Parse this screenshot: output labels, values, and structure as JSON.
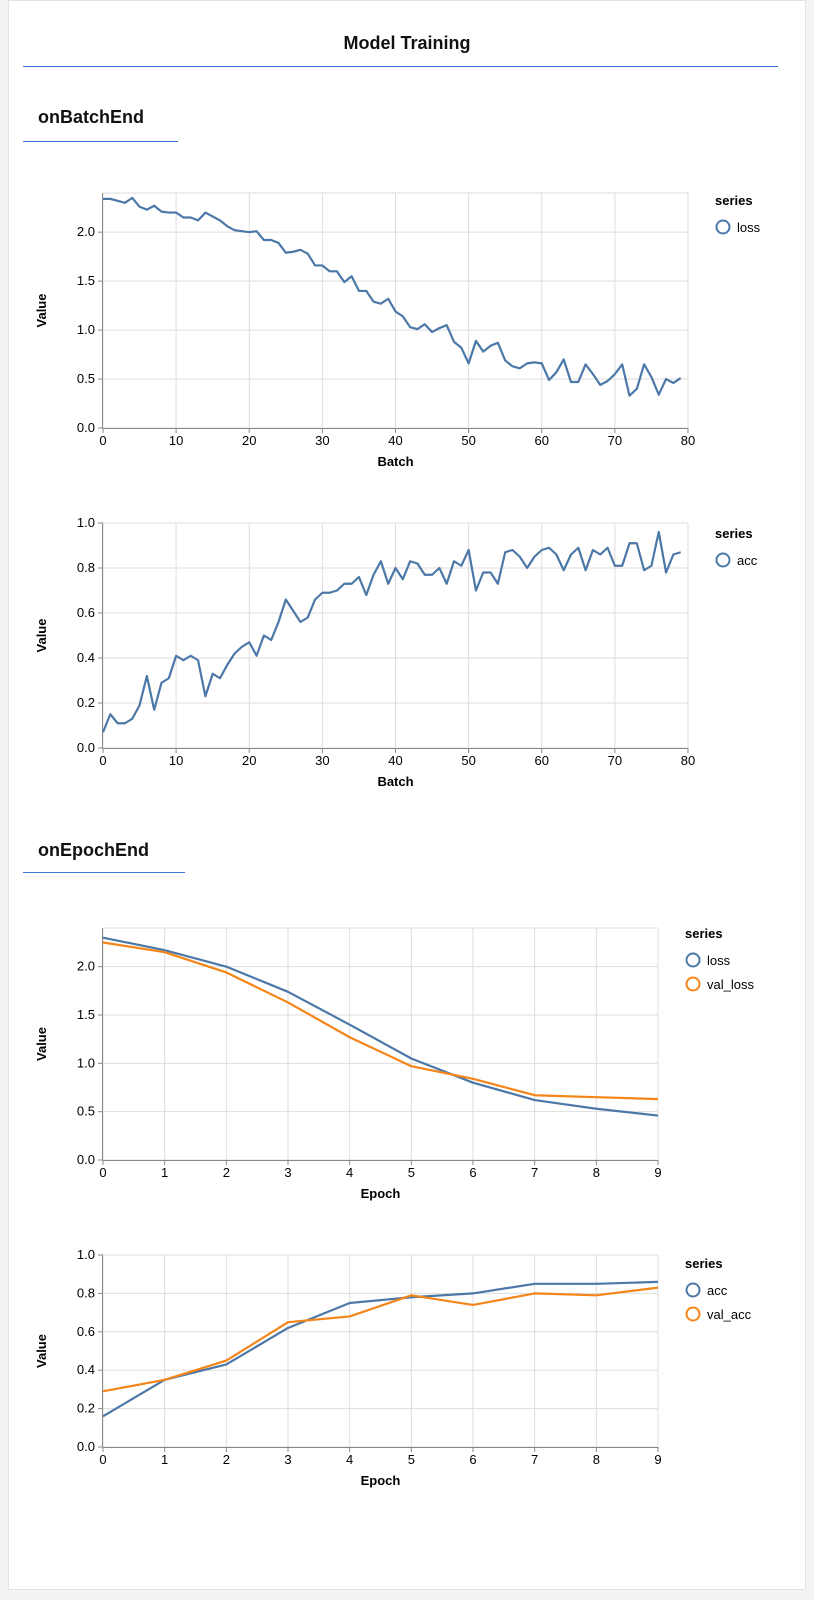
{
  "title": "Model Training",
  "sections": [
    {
      "heading": "onBatchEnd"
    },
    {
      "heading": "onEpochEnd"
    }
  ],
  "colors": {
    "series1": "#4c78a8",
    "series2": "#f58518"
  },
  "chart_data": [
    {
      "type": "line",
      "xlabel": "Batch",
      "ylabel": "Value",
      "legend_title": "series",
      "xlim": [
        0,
        80
      ],
      "ylim": [
        0,
        2.4
      ],
      "xticks": [
        0,
        10,
        20,
        30,
        40,
        50,
        60,
        70,
        80
      ],
      "yticks": [
        0,
        0.5,
        1,
        1.5,
        2
      ],
      "ytick_labels": [
        "0.0",
        "0.5",
        "1.0",
        "1.5",
        "2.0"
      ],
      "grid": true,
      "legend": "right",
      "x": [
        0,
        1,
        2,
        3,
        4,
        5,
        6,
        7,
        8,
        9,
        10,
        11,
        12,
        13,
        14,
        15,
        16,
        17,
        18,
        19,
        20,
        21,
        22,
        23,
        24,
        25,
        26,
        27,
        28,
        29,
        30,
        31,
        32,
        33,
        34,
        35,
        36,
        37,
        38,
        39,
        40,
        41,
        42,
        43,
        44,
        45,
        46,
        47,
        48,
        49,
        50,
        51,
        52,
        53,
        54,
        55,
        56,
        57,
        58,
        59,
        60,
        61,
        62,
        63,
        64,
        65,
        66,
        67,
        68,
        69,
        70,
        71,
        72,
        73,
        74,
        75,
        76,
        77,
        78,
        79
      ],
      "series": [
        {
          "name": "loss",
          "color": "#4c78a8",
          "values": [
            2.34,
            2.34,
            2.32,
            2.3,
            2.35,
            2.26,
            2.23,
            2.27,
            2.21,
            2.2,
            2.2,
            2.15,
            2.15,
            2.12,
            2.2,
            2.16,
            2.12,
            2.06,
            2.02,
            2.01,
            2.0,
            2.01,
            1.92,
            1.92,
            1.89,
            1.79,
            1.8,
            1.82,
            1.78,
            1.66,
            1.66,
            1.6,
            1.6,
            1.49,
            1.55,
            1.4,
            1.4,
            1.29,
            1.27,
            1.32,
            1.19,
            1.14,
            1.03,
            1.01,
            1.06,
            0.98,
            1.02,
            1.05,
            0.88,
            0.82,
            0.66,
            0.89,
            0.78,
            0.84,
            0.87,
            0.69,
            0.63,
            0.61,
            0.66,
            0.67,
            0.66,
            0.49,
            0.57,
            0.7,
            0.47,
            0.47,
            0.65,
            0.55,
            0.44,
            0.48,
            0.55,
            0.65,
            0.33,
            0.4,
            0.65,
            0.52,
            0.34,
            0.5,
            0.46,
            0.51
          ]
        }
      ]
    },
    {
      "type": "line",
      "xlabel": "Batch",
      "ylabel": "Value",
      "legend_title": "series",
      "xlim": [
        0,
        80
      ],
      "ylim": [
        0,
        1
      ],
      "xticks": [
        0,
        10,
        20,
        30,
        40,
        50,
        60,
        70,
        80
      ],
      "yticks": [
        0,
        0.2,
        0.4,
        0.6,
        0.8,
        1
      ],
      "ytick_labels": [
        "0.0",
        "0.2",
        "0.4",
        "0.6",
        "0.8",
        "1.0"
      ],
      "grid": true,
      "legend": "right",
      "x": [
        0,
        1,
        2,
        3,
        4,
        5,
        6,
        7,
        8,
        9,
        10,
        11,
        12,
        13,
        14,
        15,
        16,
        17,
        18,
        19,
        20,
        21,
        22,
        23,
        24,
        25,
        26,
        27,
        28,
        29,
        30,
        31,
        32,
        33,
        34,
        35,
        36,
        37,
        38,
        39,
        40,
        41,
        42,
        43,
        44,
        45,
        46,
        47,
        48,
        49,
        50,
        51,
        52,
        53,
        54,
        55,
        56,
        57,
        58,
        59,
        60,
        61,
        62,
        63,
        64,
        65,
        66,
        67,
        68,
        69,
        70,
        71,
        72,
        73,
        74,
        75,
        76,
        77,
        78,
        79
      ],
      "series": [
        {
          "name": "acc",
          "color": "#4c78a8",
          "values": [
            0.07,
            0.15,
            0.11,
            0.11,
            0.13,
            0.19,
            0.32,
            0.17,
            0.29,
            0.31,
            0.41,
            0.39,
            0.41,
            0.39,
            0.23,
            0.33,
            0.31,
            0.37,
            0.42,
            0.45,
            0.47,
            0.41,
            0.5,
            0.48,
            0.56,
            0.66,
            0.61,
            0.56,
            0.58,
            0.66,
            0.69,
            0.69,
            0.7,
            0.73,
            0.73,
            0.76,
            0.68,
            0.77,
            0.83,
            0.73,
            0.8,
            0.75,
            0.83,
            0.82,
            0.77,
            0.77,
            0.8,
            0.73,
            0.83,
            0.81,
            0.88,
            0.7,
            0.78,
            0.78,
            0.73,
            0.87,
            0.88,
            0.85,
            0.8,
            0.85,
            0.88,
            0.89,
            0.86,
            0.79,
            0.86,
            0.89,
            0.79,
            0.88,
            0.86,
            0.89,
            0.81,
            0.81,
            0.91,
            0.91,
            0.79,
            0.81,
            0.96,
            0.78,
            0.86,
            0.87
          ]
        }
      ]
    },
    {
      "type": "line",
      "xlabel": "Epoch",
      "ylabel": "Value",
      "legend_title": "series",
      "xlim": [
        0,
        9
      ],
      "ylim": [
        0,
        2.4
      ],
      "xticks": [
        0,
        1,
        2,
        3,
        4,
        5,
        6,
        7,
        8,
        9
      ],
      "yticks": [
        0,
        0.5,
        1,
        1.5,
        2
      ],
      "ytick_labels": [
        "0.0",
        "0.5",
        "1.0",
        "1.5",
        "2.0"
      ],
      "grid": true,
      "legend": "right",
      "x": [
        0,
        1,
        2,
        3,
        4,
        5,
        6,
        7,
        8,
        9
      ],
      "series": [
        {
          "name": "loss",
          "color": "#4c78a8",
          "values": [
            2.3,
            2.17,
            2.0,
            1.74,
            1.4,
            1.05,
            0.8,
            0.62,
            0.53,
            0.46
          ]
        },
        {
          "name": "val_loss",
          "color": "#f58518",
          "values": [
            2.25,
            2.15,
            1.94,
            1.63,
            1.27,
            0.97,
            0.84,
            0.67,
            0.65,
            0.63
          ]
        }
      ]
    },
    {
      "type": "line",
      "xlabel": "Epoch",
      "ylabel": "Value",
      "legend_title": "series",
      "xlim": [
        0,
        9
      ],
      "ylim": [
        0,
        1
      ],
      "xticks": [
        0,
        1,
        2,
        3,
        4,
        5,
        6,
        7,
        8,
        9
      ],
      "yticks": [
        0,
        0.2,
        0.4,
        0.6,
        0.8,
        1
      ],
      "ytick_labels": [
        "0.0",
        "0.2",
        "0.4",
        "0.6",
        "0.8",
        "1.0"
      ],
      "grid": true,
      "legend": "right",
      "x": [
        0,
        1,
        2,
        3,
        4,
        5,
        6,
        7,
        8,
        9
      ],
      "series": [
        {
          "name": "acc",
          "color": "#4c78a8",
          "values": [
            0.16,
            0.35,
            0.43,
            0.62,
            0.75,
            0.78,
            0.8,
            0.85,
            0.85,
            0.86
          ]
        },
        {
          "name": "val_acc",
          "color": "#f58518",
          "values": [
            0.29,
            0.35,
            0.45,
            0.65,
            0.68,
            0.79,
            0.74,
            0.8,
            0.79,
            0.83
          ]
        }
      ]
    }
  ]
}
